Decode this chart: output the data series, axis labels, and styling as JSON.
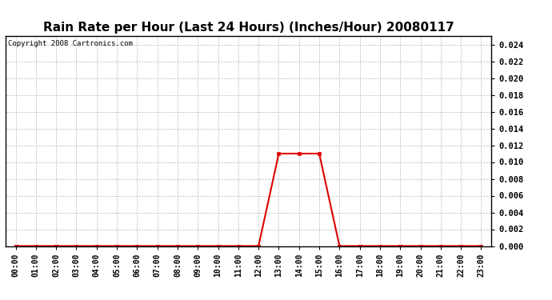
{
  "title": "Rain Rate per Hour (Last 24 Hours) (Inches/Hour) 20080117",
  "copyright": "Copyright 2008 Cartronics.com",
  "hours": [
    0,
    1,
    2,
    3,
    4,
    5,
    6,
    7,
    8,
    9,
    10,
    11,
    12,
    13,
    14,
    15,
    16,
    17,
    18,
    19,
    20,
    21,
    22,
    23
  ],
  "values": [
    0,
    0,
    0,
    0,
    0,
    0,
    0,
    0,
    0,
    0,
    0,
    0,
    0,
    0.011,
    0.011,
    0.011,
    0,
    0,
    0,
    0,
    0,
    0,
    0,
    0
  ],
  "x_labels": [
    "00:00",
    "01:00",
    "02:00",
    "03:00",
    "04:00",
    "05:00",
    "06:00",
    "07:00",
    "08:00",
    "09:00",
    "10:00",
    "11:00",
    "12:00",
    "13:00",
    "14:00",
    "15:00",
    "16:00",
    "17:00",
    "18:00",
    "19:00",
    "20:00",
    "21:00",
    "22:00",
    "23:00"
  ],
  "line_color": "#dd0000",
  "marker": "s",
  "marker_size": 2.5,
  "ylim": [
    0,
    0.025
  ],
  "yticks": [
    0.0,
    0.002,
    0.004,
    0.006,
    0.008,
    0.01,
    0.012,
    0.014,
    0.016,
    0.018,
    0.02,
    0.022,
    0.024
  ],
  "background_color": "#ffffff",
  "grid_color": "#bbbbbb",
  "title_fontsize": 11,
  "copyright_fontsize": 6.5,
  "tick_fontsize": 7,
  "ytick_fontsize": 7.5
}
